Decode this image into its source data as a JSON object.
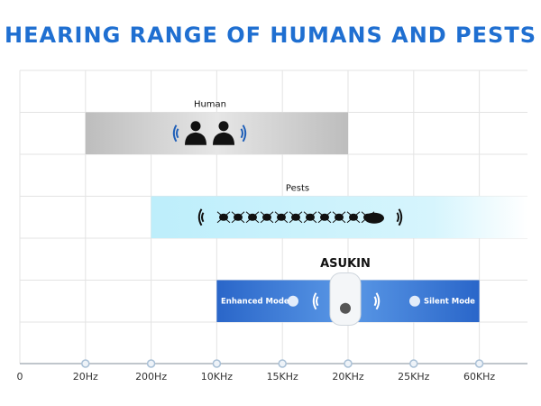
{
  "chart_data": {
    "type": "range",
    "title": "HEARING RANGE OF HUMANS AND PESTS",
    "categories": [
      "0",
      "20Hz",
      "200Hz",
      "10KHz",
      "15KHz",
      "20KHz",
      "25KHz",
      "60KHz"
    ],
    "series": [
      {
        "name": "Human",
        "from": "20Hz",
        "to": "20KHz",
        "color": "#c4c4c4",
        "open_end": false
      },
      {
        "name": "Pests",
        "from": "200Hz",
        "to": "60KHz",
        "color": "#bfeefa",
        "open_end": true
      },
      {
        "name": "ASUKIN",
        "from": "10KHz",
        "to": "60KHz",
        "color": "#2f74d6",
        "open_end": false,
        "modes": [
          "Enhanced Mode",
          "Silent Mode"
        ]
      }
    ],
    "grid": true
  }
}
